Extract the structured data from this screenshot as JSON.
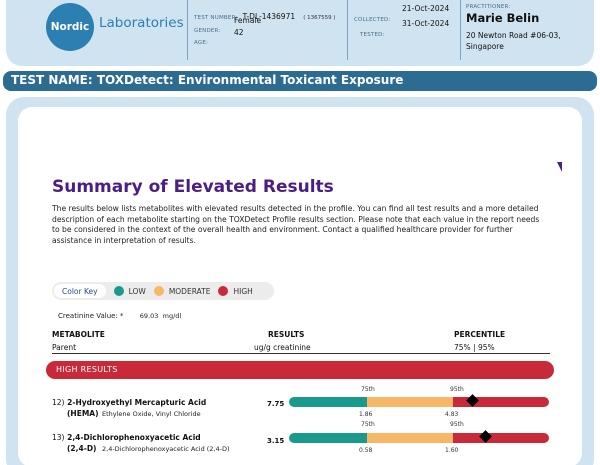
{
  "header": {
    "logo_initials": "Nordic",
    "logo_text": "Laboratories",
    "test_number_label": "TEST NUMBER:",
    "test_number": "T-DL-1436971",
    "test_number_alt": "( 1367559 )",
    "gender_label": "GENDER:",
    "gender": "Female",
    "age_label": "AGE:",
    "age": "42",
    "collected_label": "COLLECTED:",
    "collected": "21-Oct-2024",
    "tested_label": "TESTED:",
    "tested": "31-Oct-2024",
    "practitioner_label": "PRACTITIONER:",
    "practitioner_name": "Marie Belin",
    "practitioner_address_1": "20 Newton Road #06-03,",
    "practitioner_address_2": "Singapore"
  },
  "test_name": "TEST NAME: TOXDetect: Environmental Toxicant Exposure",
  "summary": {
    "title": "Summary of Elevated Results",
    "paragraph": "The results below lists metabolites with elevated results detected in the profile. You can find all test results and a more detailed description of each metabolite starting on the TOXDetect Profile results section. Please note that each value in the report needs to be considered in the context of the overall health and environment. Contact a qualified healthcare provider for further assistance in interpretation of results."
  },
  "color_key": {
    "label": "Color Key",
    "items": [
      {
        "label": "LOW",
        "color": "#1a9a8c"
      },
      {
        "label": "MODERATE",
        "color": "#f7b766"
      },
      {
        "label": "HIGH",
        "color": "#c92a3a"
      }
    ]
  },
  "creatinine": {
    "label": "Creatinine Value: *",
    "value": "69.03",
    "unit": "mg/dl"
  },
  "columns": {
    "metabolite": "METABOLITE",
    "metabolite_sub": "Parent",
    "results": "RESULTS",
    "results_sub": "ug/g creatinine",
    "percentile": "PERCENTILE",
    "percentile_sub": "75% | 95%"
  },
  "high_results_label": "HIGH RESULTS",
  "rows": [
    {
      "num": "12)",
      "name": "2-Hydroxyethyl Mercapturic Acid",
      "abbr": "(HEMA)",
      "parent": "Ethylene Oxide, Vinyl Chloride",
      "value": "7.75",
      "p75_label": "75th",
      "p95_label": "95th",
      "p75_value": "1.86",
      "p95_value": "4.83",
      "marker_fraction": 0.9
    },
    {
      "num": "13)",
      "name": "2,4-Dichlorophenoxyacetic Acid",
      "abbr": "(2,4-D)",
      "parent": "2,4-Dichlorophenoxyacetic Acid (2,4-D)",
      "value": "3.15",
      "p75_label": "75th",
      "p95_label": "95th",
      "p75_value": "0.58",
      "p95_value": "1.60",
      "marker_fraction": 0.9
    }
  ]
}
